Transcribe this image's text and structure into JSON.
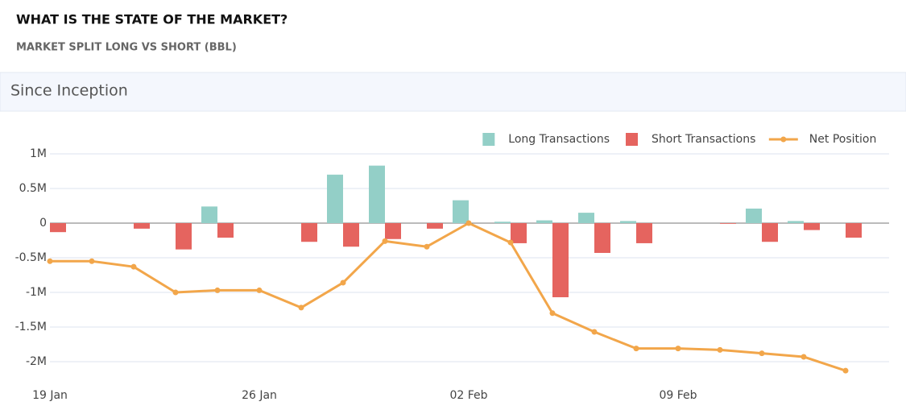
{
  "header": {
    "title": "WHAT IS THE STATE OF THE MARKET?",
    "subtitle": "MARKET SPLIT LONG VS SHORT (BBL)"
  },
  "panel": {
    "title": "Since Inception"
  },
  "chart_data": {
    "type": "bar_line",
    "categories": [
      "19 Jan",
      null,
      null,
      null,
      null,
      "26 Jan",
      null,
      null,
      null,
      null,
      "02 Feb",
      null,
      null,
      null,
      null,
      "09 Feb",
      null,
      null,
      null,
      null
    ],
    "series": [
      {
        "name": "Long Transactions",
        "type": "bar",
        "color": "#93cfc7",
        "values": [
          0,
          0,
          0,
          0,
          240000,
          0,
          0,
          700000,
          830000,
          0,
          330000,
          20000,
          40000,
          150000,
          30000,
          0,
          0,
          210000,
          30000,
          0
        ]
      },
      {
        "name": "Short Transactions",
        "type": "bar",
        "color": "#e5645f",
        "values": [
          -130000,
          0,
          -80000,
          -380000,
          -210000,
          0,
          -270000,
          -340000,
          -230000,
          -80000,
          0,
          -290000,
          -1070000,
          -430000,
          -290000,
          0,
          -10000,
          -270000,
          -100000,
          -210000
        ]
      },
      {
        "name": "Net Position",
        "type": "line",
        "color": "#f2a64a",
        "values": [
          -550000,
          -550000,
          -630000,
          -1000000,
          -970000,
          -970000,
          -1220000,
          -860000,
          -260000,
          -340000,
          0,
          -280000,
          -1300000,
          -1570000,
          -1810000,
          -1810000,
          -1830000,
          -1880000,
          -1930000,
          -2130000
        ]
      }
    ],
    "ylim": [
      -2250000,
      1150000
    ],
    "yticks": [
      {
        "value": -2000000,
        "label": "-2M"
      },
      {
        "value": -1500000,
        "label": "-1.5M"
      },
      {
        "value": -1000000,
        "label": "-1M"
      },
      {
        "value": -500000,
        "label": "-0.5M"
      },
      0,
      {
        "value": 500000,
        "label": "0.5M"
      },
      {
        "value": 1000000,
        "label": "1M"
      }
    ],
    "grid": true,
    "legend": "top-right"
  }
}
